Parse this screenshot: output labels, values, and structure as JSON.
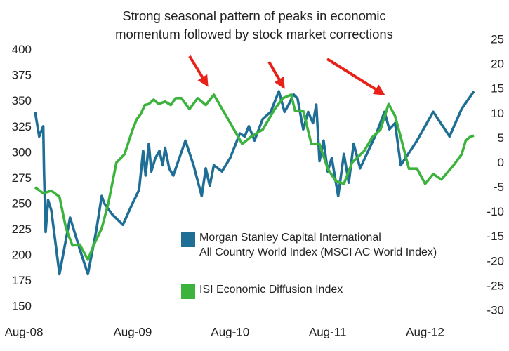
{
  "chart_data": {
    "type": "line",
    "annotation": [
      "Strong seasonal pattern of peaks in economic",
      "momentum followed by stock market corrections"
    ],
    "xlim": [
      0,
      54
    ],
    "xticks": [
      {
        "value": 0,
        "label": "Aug-08"
      },
      {
        "value": 12,
        "label": "Aug-09"
      },
      {
        "value": 24,
        "label": "Aug-10"
      },
      {
        "value": 36,
        "label": "Aug-11"
      },
      {
        "value": 48,
        "label": "Aug-12"
      }
    ],
    "ylim": [
      146,
      410
    ],
    "yticks": [
      150,
      175,
      200,
      225,
      250,
      275,
      300,
      325,
      350,
      375,
      400
    ],
    "y2lim": [
      -30,
      25
    ],
    "y2ticks": [
      -30,
      -25,
      -20,
      -15,
      -10,
      -5,
      0,
      5,
      10,
      15,
      20,
      25
    ],
    "grid": false,
    "series": [
      {
        "name": [
          "Morgan Stanley Capital International",
          "All Country World Index (MSCI AC World Index)"
        ],
        "color": "#1f6e96",
        "axis": "y",
        "x": [
          0,
          0.5,
          1,
          1.1,
          1.3,
          1.6,
          2,
          3,
          4.3,
          5.5,
          6.5,
          7.5,
          8.2,
          8.5,
          9.5,
          10.8,
          12,
          12.8,
          13.3,
          13.6,
          14,
          14.3,
          14.8,
          15.3,
          15.7,
          16,
          16.5,
          17,
          18.5,
          19.5,
          20.5,
          21,
          21.5,
          22,
          23,
          24,
          25.2,
          25.8,
          26.3,
          27,
          28,
          29,
          30,
          30.7,
          31.2,
          31.8,
          32.3,
          33,
          33.6,
          34.2,
          34.6,
          35,
          35.5,
          36,
          36.5,
          37.3,
          38,
          38.6,
          39.2,
          40,
          41,
          42,
          43,
          43.6,
          44.3,
          45,
          47,
          49,
          51,
          52.5,
          54
        ],
        "values": [
          340,
          316,
          326,
          282,
          223,
          254,
          244,
          182,
          237,
          206,
          182,
          223,
          258,
          251,
          240,
          230,
          251,
          264,
          302,
          278,
          309,
          282,
          295,
          302,
          288,
          305,
          285,
          278,
          312,
          288,
          258,
          285,
          268,
          288,
          282,
          295,
          319,
          316,
          326,
          312,
          333,
          340,
          360,
          340,
          347,
          357,
          353,
          323,
          340,
          329,
          347,
          292,
          312,
          282,
          295,
          258,
          299,
          271,
          309,
          285,
          302,
          319,
          340,
          323,
          329,
          288,
          312,
          340,
          316,
          343,
          360
        ]
      },
      {
        "name": [
          "ISI Economic Diffusion Index"
        ],
        "color": "#3cb33c",
        "axis": "y2",
        "x": [
          0,
          1,
          2,
          3,
          3.8,
          4.6,
          5.5,
          6.5,
          7.2,
          8.2,
          9,
          10,
          11,
          12,
          12.5,
          13,
          13.5,
          14,
          14.6,
          15.2,
          16,
          16.7,
          17.3,
          18,
          19,
          20,
          21,
          22,
          24,
          25.5,
          26.5,
          28,
          29.5,
          30.5,
          31.5,
          32,
          33,
          34,
          35,
          36,
          37,
          38,
          39,
          40.5,
          41.5,
          42.5,
          43.5,
          44.3,
          45,
          46,
          47,
          48,
          49,
          50,
          51.5,
          52.5,
          53,
          53.5,
          54
        ],
        "values": [
          -4.9,
          -6.1,
          -5.6,
          -6.8,
          -13.2,
          -16.7,
          -16.5,
          -19.6,
          -16.7,
          -13.2,
          -8.2,
          0.1,
          1.8,
          6.8,
          8.9,
          10.0,
          11.8,
          12.0,
          12.9,
          12.0,
          12.5,
          11.8,
          13.2,
          13.2,
          11.0,
          13.2,
          11.8,
          13.9,
          8.2,
          3.9,
          5.3,
          6.8,
          11.0,
          13.2,
          13.9,
          10.6,
          10.6,
          3.9,
          3.9,
          -1.1,
          -3.6,
          -4.2,
          0.1,
          2.5,
          5.3,
          6.8,
          12.0,
          9.6,
          5.3,
          -1.1,
          -1.1,
          -4.2,
          -2.2,
          -3.3,
          -0.4,
          1.8,
          4.6,
          5.3,
          5.6
        ]
      }
    ]
  }
}
